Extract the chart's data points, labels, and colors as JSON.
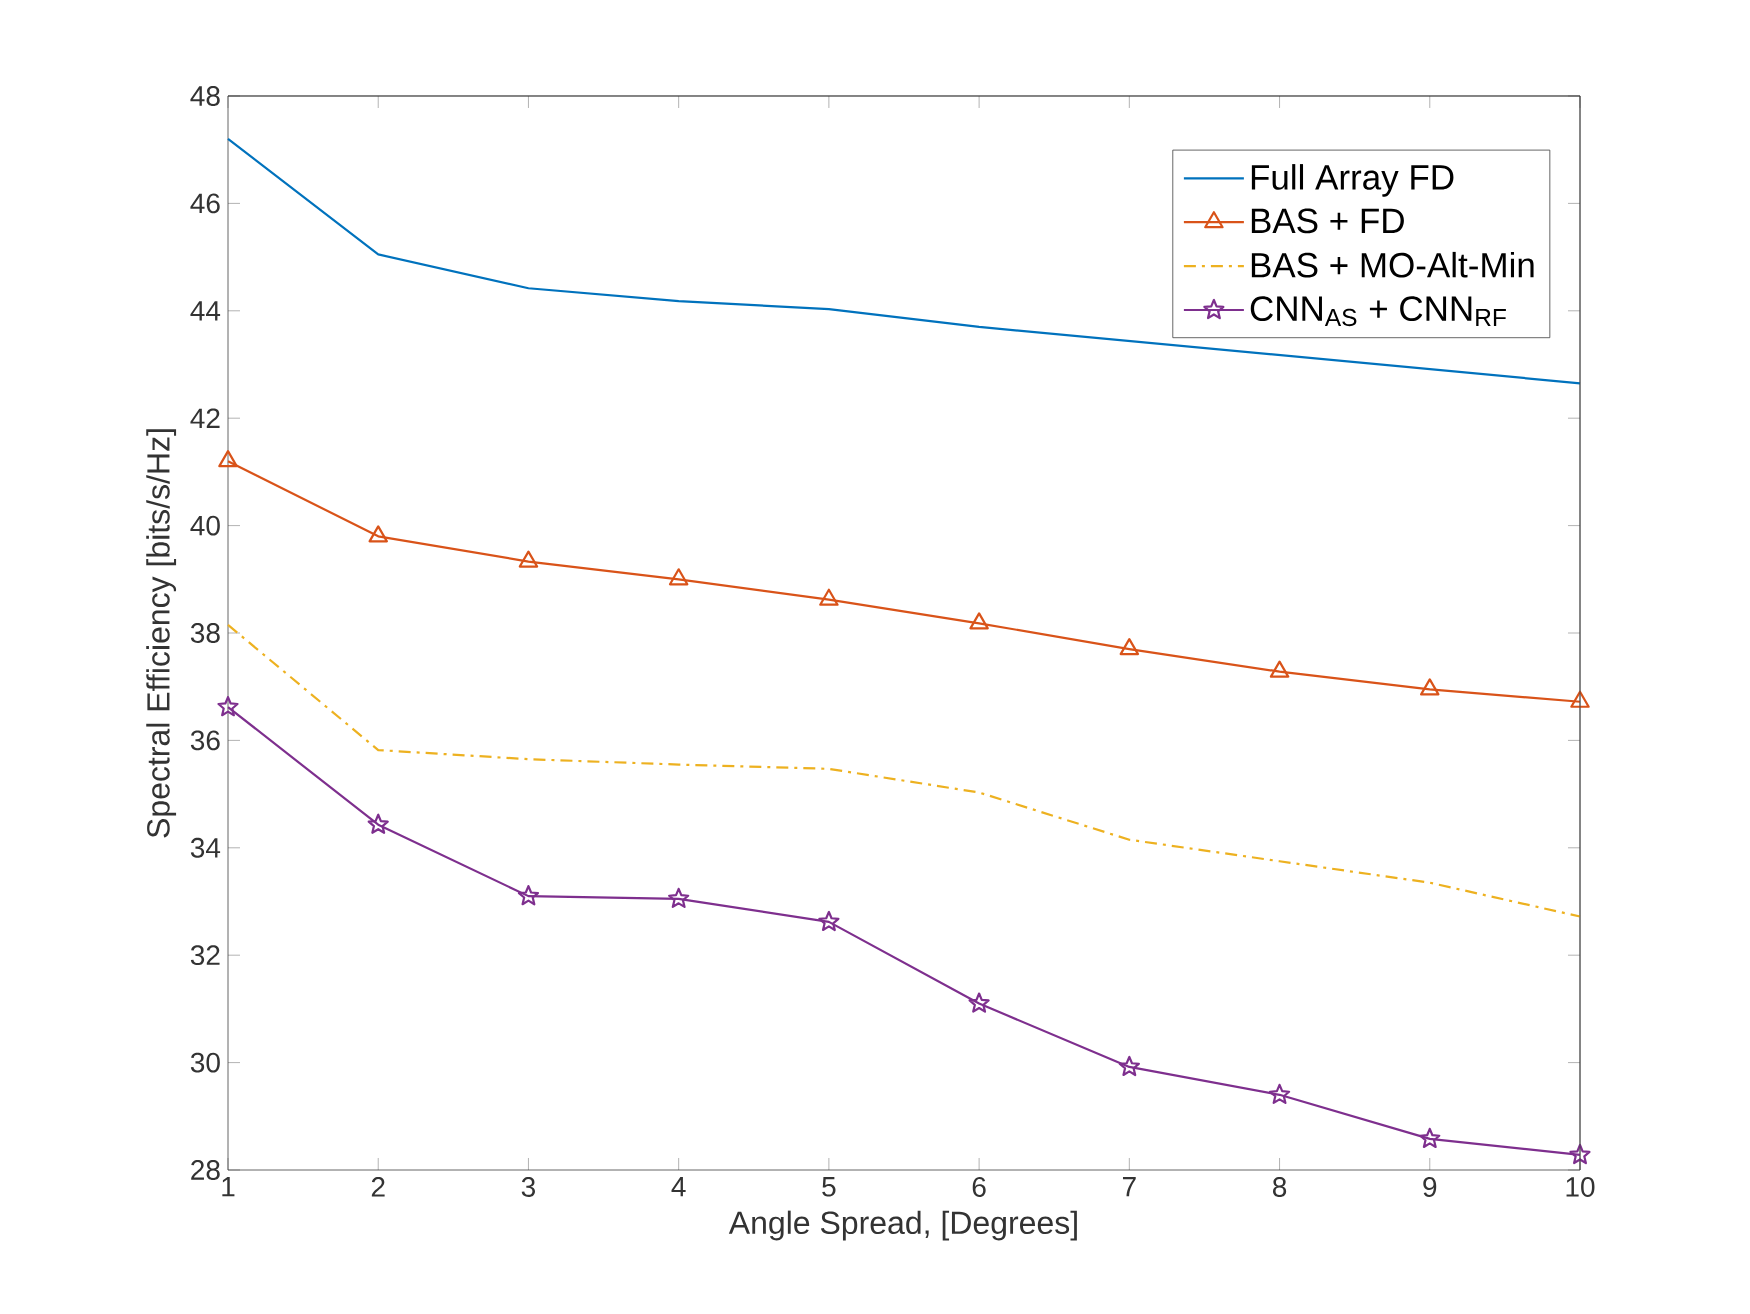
{
  "chart_data": {
    "type": "line",
    "xlabel": "Angle Spread, [Degrees]",
    "ylabel": "Spectral Efficiency [bits/s/Hz]",
    "x": [
      1,
      2,
      3,
      4,
      5,
      6,
      7,
      8,
      9,
      10
    ],
    "xlim": [
      1,
      10
    ],
    "xticks": [
      1,
      2,
      3,
      4,
      5,
      6,
      7,
      8,
      9,
      10
    ],
    "ylim": [
      28,
      48
    ],
    "yticks": [
      28,
      30,
      32,
      34,
      36,
      38,
      40,
      42,
      44,
      46,
      48
    ],
    "grid": false,
    "legend": "top right",
    "series": [
      {
        "name": "Full Array FD",
        "color": "#0072bd",
        "marker": "none",
        "line_style": "solid",
        "values": [
          47.2,
          45.05,
          44.42,
          44.18,
          44.03,
          43.7,
          null,
          null,
          null,
          42.65
        ]
      },
      {
        "name": "BAS + FD",
        "color": "#d95319",
        "marker": "triangle",
        "line_style": "solid",
        "values": [
          41.2,
          39.8,
          39.33,
          39.0,
          38.62,
          38.18,
          37.7,
          37.28,
          36.95,
          36.72
        ]
      },
      {
        "name": "BAS + MO-Alt-Min",
        "color": "#edb120",
        "marker": "none",
        "line_style": "dashdot",
        "values": [
          38.15,
          35.82,
          35.65,
          35.55,
          35.47,
          35.03,
          34.15,
          33.75,
          33.35,
          32.72
        ]
      },
      {
        "name": "CNN$_{AS}$ + CNN$_{RF}$",
        "color": "#7e2f8e",
        "marker": "star",
        "line_style": "solid",
        "values": [
          36.62,
          34.43,
          33.1,
          33.05,
          32.62,
          31.1,
          29.92,
          29.4,
          28.58,
          28.28
        ]
      }
    ]
  }
}
